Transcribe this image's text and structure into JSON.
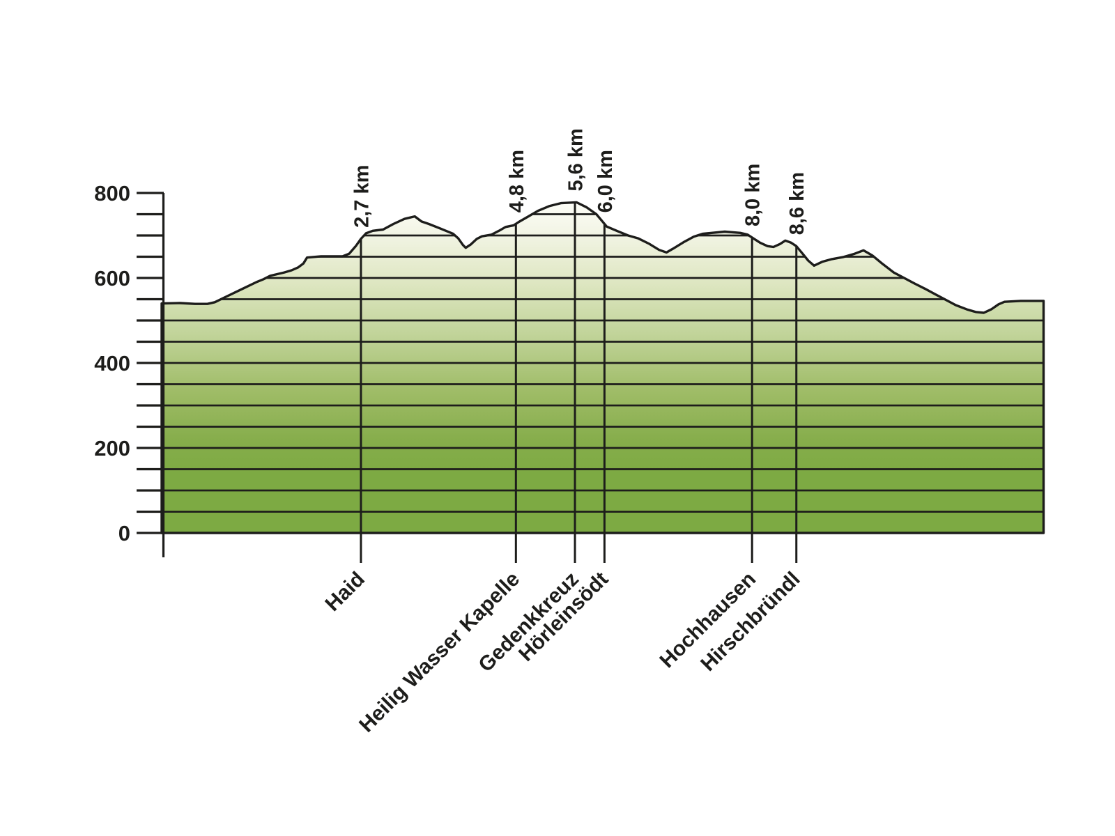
{
  "chart_data": {
    "type": "area",
    "description": "Elevation profile of a hiking trail with waypoint markers",
    "x_unit": "km",
    "y_unit": "m",
    "grid": true,
    "legend": false,
    "y_axis": {
      "min": 0,
      "max": 800,
      "labeled_ticks": [
        0,
        200,
        400,
        600,
        800
      ],
      "minor_tick_step": 50,
      "gridline_step": 50
    },
    "x_axis": {
      "min_km": 0,
      "max_km": 11.95
    },
    "waypoints": [
      {
        "km": 2.7,
        "km_label": "2,7 km",
        "name": "Haid"
      },
      {
        "km": 4.8,
        "km_label": "4,8 km",
        "name": "Heilig Wasser Kapelle"
      },
      {
        "km": 5.6,
        "km_label": "5,6 km",
        "name": "Gedenkkreuz"
      },
      {
        "km": 6.0,
        "km_label": "6,0 km",
        "name": "Hörleinsödt"
      },
      {
        "km": 8.0,
        "km_label": "8,0 km",
        "name": "Hochhausen"
      },
      {
        "km": 8.6,
        "km_label": "8,6 km",
        "name": "Hirschbründl"
      }
    ],
    "profile_km_elevation": [
      [
        0.0,
        540
      ],
      [
        0.25,
        541
      ],
      [
        0.45,
        539
      ],
      [
        0.62,
        539
      ],
      [
        0.72,
        543
      ],
      [
        0.91,
        559
      ],
      [
        1.1,
        575
      ],
      [
        1.28,
        590
      ],
      [
        1.38,
        597
      ],
      [
        1.47,
        605
      ],
      [
        1.66,
        613
      ],
      [
        1.76,
        618
      ],
      [
        1.85,
        625
      ],
      [
        1.92,
        634
      ],
      [
        1.97,
        648
      ],
      [
        2.16,
        651
      ],
      [
        2.45,
        651
      ],
      [
        2.54,
        657
      ],
      [
        2.63,
        675
      ],
      [
        2.7,
        692
      ],
      [
        2.77,
        705
      ],
      [
        2.86,
        711
      ],
      [
        3.0,
        714
      ],
      [
        3.14,
        727
      ],
      [
        3.29,
        739
      ],
      [
        3.43,
        745
      ],
      [
        3.52,
        733
      ],
      [
        3.62,
        727
      ],
      [
        3.78,
        716
      ],
      [
        3.95,
        704
      ],
      [
        4.02,
        693
      ],
      [
        4.08,
        678
      ],
      [
        4.12,
        671
      ],
      [
        4.19,
        679
      ],
      [
        4.27,
        692
      ],
      [
        4.34,
        698
      ],
      [
        4.47,
        702
      ],
      [
        4.57,
        711
      ],
      [
        4.66,
        720
      ],
      [
        4.77,
        724
      ],
      [
        4.84,
        732
      ],
      [
        4.97,
        745
      ],
      [
        5.1,
        758
      ],
      [
        5.25,
        769
      ],
      [
        5.41,
        776
      ],
      [
        5.62,
        778
      ],
      [
        5.76,
        766
      ],
      [
        5.89,
        750
      ],
      [
        6.03,
        721
      ],
      [
        6.18,
        710
      ],
      [
        6.32,
        700
      ],
      [
        6.46,
        693
      ],
      [
        6.6,
        681
      ],
      [
        6.74,
        666
      ],
      [
        6.84,
        660
      ],
      [
        6.93,
        669
      ],
      [
        7.07,
        684
      ],
      [
        7.21,
        697
      ],
      [
        7.33,
        704
      ],
      [
        7.63,
        709
      ],
      [
        7.84,
        706
      ],
      [
        7.94,
        702
      ],
      [
        8.01,
        694
      ],
      [
        8.11,
        683
      ],
      [
        8.21,
        675
      ],
      [
        8.29,
        673
      ],
      [
        8.38,
        680
      ],
      [
        8.45,
        688
      ],
      [
        8.53,
        683
      ],
      [
        8.6,
        675
      ],
      [
        8.69,
        656
      ],
      [
        8.76,
        641
      ],
      [
        8.84,
        629
      ],
      [
        8.95,
        638
      ],
      [
        9.07,
        644
      ],
      [
        9.23,
        649
      ],
      [
        9.39,
        657
      ],
      [
        9.51,
        665
      ],
      [
        9.63,
        653
      ],
      [
        9.77,
        633
      ],
      [
        9.92,
        613
      ],
      [
        10.06,
        600
      ],
      [
        10.2,
        587
      ],
      [
        10.34,
        575
      ],
      [
        10.48,
        562
      ],
      [
        10.62,
        549
      ],
      [
        10.76,
        536
      ],
      [
        10.91,
        526
      ],
      [
        11.03,
        520
      ],
      [
        11.14,
        518
      ],
      [
        11.24,
        526
      ],
      [
        11.34,
        538
      ],
      [
        11.42,
        544
      ],
      [
        11.64,
        546
      ],
      [
        11.95,
        546
      ]
    ],
    "colors": {
      "line": "#1d1d1b",
      "fill_top": "#fefef9",
      "fill_bottom": "#7daa43",
      "fill_gradient": [
        "#fefef9",
        "#f3f5e6",
        "#dfe7c3",
        "#c0d398",
        "#9fbc67",
        "#86ad4b",
        "#7daa43"
      ],
      "background": "#ffffff"
    }
  }
}
